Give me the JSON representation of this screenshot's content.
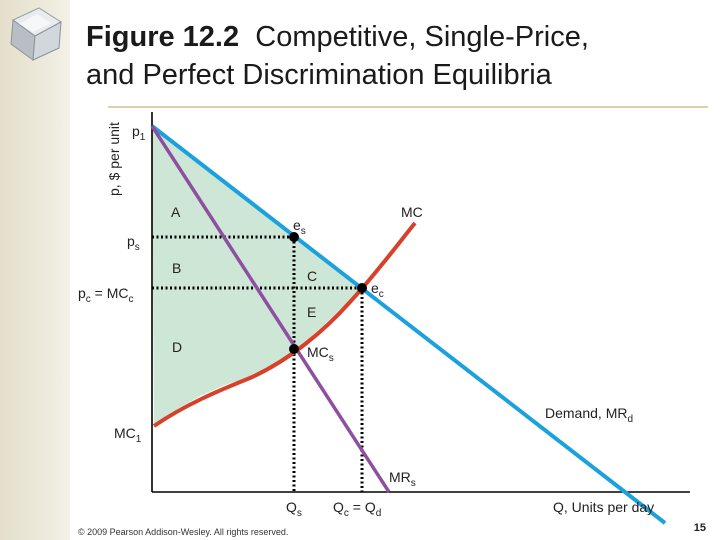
{
  "slide": {
    "title_bold": "Figure 12.2",
    "title_rest_line1": "Competitive, Single-Price,",
    "title_line2": "and Perfect Discrimination Equilibria",
    "copyright": "© 2009 Pearson Addison-Wesley. All rights reserved.",
    "page_number": "15"
  },
  "colors": {
    "demand": "#1ba1dd",
    "mc": "#d7402a",
    "mr": "#8e4fa0",
    "surplus_fill": "#cde6d6",
    "axis": "#000000"
  },
  "labels": {
    "y_axis": "p, $ per unit",
    "x_axis": "Q, Units per day",
    "p1": "p",
    "p1_sub": "1",
    "ps": "p",
    "ps_sub": "s",
    "pc": "p",
    "pc_sub": "c",
    "pc_eq": " = MC",
    "pc_eq_sub": "c",
    "mc": "MC",
    "mc1": "MC",
    "mc1_sub": "1",
    "demand": "Demand, MR",
    "demand_sub": "d",
    "mrs": "MR",
    "mrs_sub": "s",
    "es": "e",
    "es_sub": "s",
    "ec": "e",
    "ec_sub": "c",
    "mcs": "MC",
    "mcs_sub": "s",
    "qs": "Q",
    "qs_sub": "s",
    "qc": "Q",
    "qc_sub": "c",
    "qc_eq": " = Q",
    "qc_eq_sub": "d",
    "area_a": "A",
    "area_b": "B",
    "area_c": "C",
    "area_d": "D",
    "area_e": "E"
  }
}
